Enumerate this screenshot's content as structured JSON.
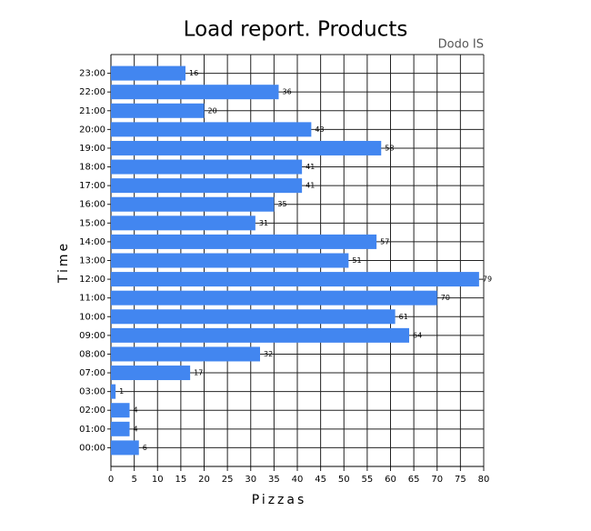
{
  "chart_data": {
    "type": "hbar",
    "title": "Load report. Products",
    "subtitle": "Dodo IS",
    "x_label": "Pizzas",
    "y_label": "Time",
    "categories": [
      "00:00",
      "01:00",
      "02:00",
      "03:00",
      "07:00",
      "08:00",
      "09:00",
      "10:00",
      "11:00",
      "12:00",
      "13:00",
      "14:00",
      "15:00",
      "16:00",
      "17:00",
      "18:00",
      "19:00",
      "20:00",
      "21:00",
      "22:00",
      "23:00"
    ],
    "values": [
      6,
      4,
      4,
      1,
      17,
      32,
      64,
      61,
      70,
      79,
      51,
      57,
      31,
      35,
      41,
      41,
      58,
      43,
      20,
      36,
      16
    ],
    "color": "#4286f0",
    "xlim": [
      0,
      80
    ],
    "xticks": [
      0,
      5,
      10,
      15,
      20,
      25,
      30,
      35,
      40,
      45,
      50,
      55,
      60,
      65,
      70,
      75,
      80
    ],
    "grid": true
  }
}
